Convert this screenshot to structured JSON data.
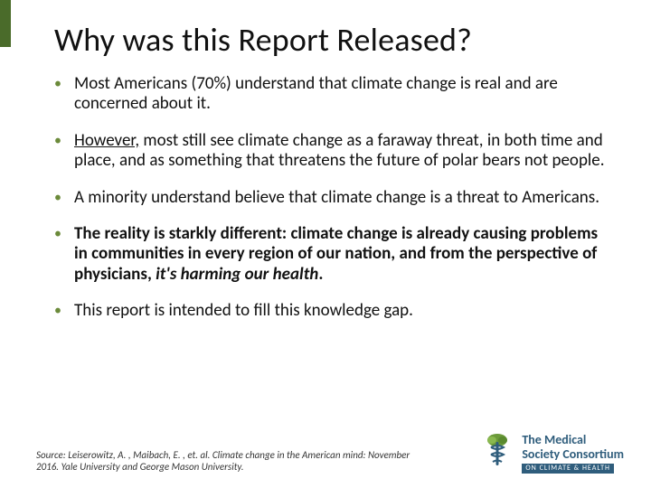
{
  "accent_color": "#4a6b2a",
  "bullet_color": "#6b8a3a",
  "text_color": "#111111",
  "background_color": "#ffffff",
  "title": "Why was this Report Released?",
  "title_fontsize": 36,
  "body_fontsize": 19,
  "bullets": [
    {
      "runs": [
        {
          "text": "Most Americans (70%) understand that climate change is real and are concerned about it."
        }
      ]
    },
    {
      "runs": [
        {
          "text": "However,",
          "underline": true
        },
        {
          "text": " most still see climate change as a faraway threat, in both time and place, and as something that threatens the future of polar bears not people."
        }
      ]
    },
    {
      "runs": [
        {
          "text": "A minority understand believe that climate change is a threat to Americans."
        }
      ]
    },
    {
      "runs": [
        {
          "text": "The reality is starkly different: climate change is already causing problems in communities in every region of our nation, and from the perspective of physicians, ",
          "bold": true
        },
        {
          "text": "it's harming our health",
          "bold": true,
          "italic": true
        },
        {
          "text": ".",
          "bold": true
        }
      ]
    },
    {
      "runs": [
        {
          "text": "This report is intended to fill this knowledge gap."
        }
      ]
    }
  ],
  "citation": "Source: Leiserowitz, A. , Maibach, E. , et. al. Climate change in the American mind: November 2016. Yale University and George Mason University.",
  "citation_fontsize": 11,
  "logo": {
    "line1": "The Medical",
    "line2": "Society Consortium",
    "subline": "ON CLIMATE & HEALTH",
    "icon_color_leaf": "#6b9a3a",
    "icon_color_staff": "#2f5d7c",
    "text_color": "#2f5d7c"
  }
}
